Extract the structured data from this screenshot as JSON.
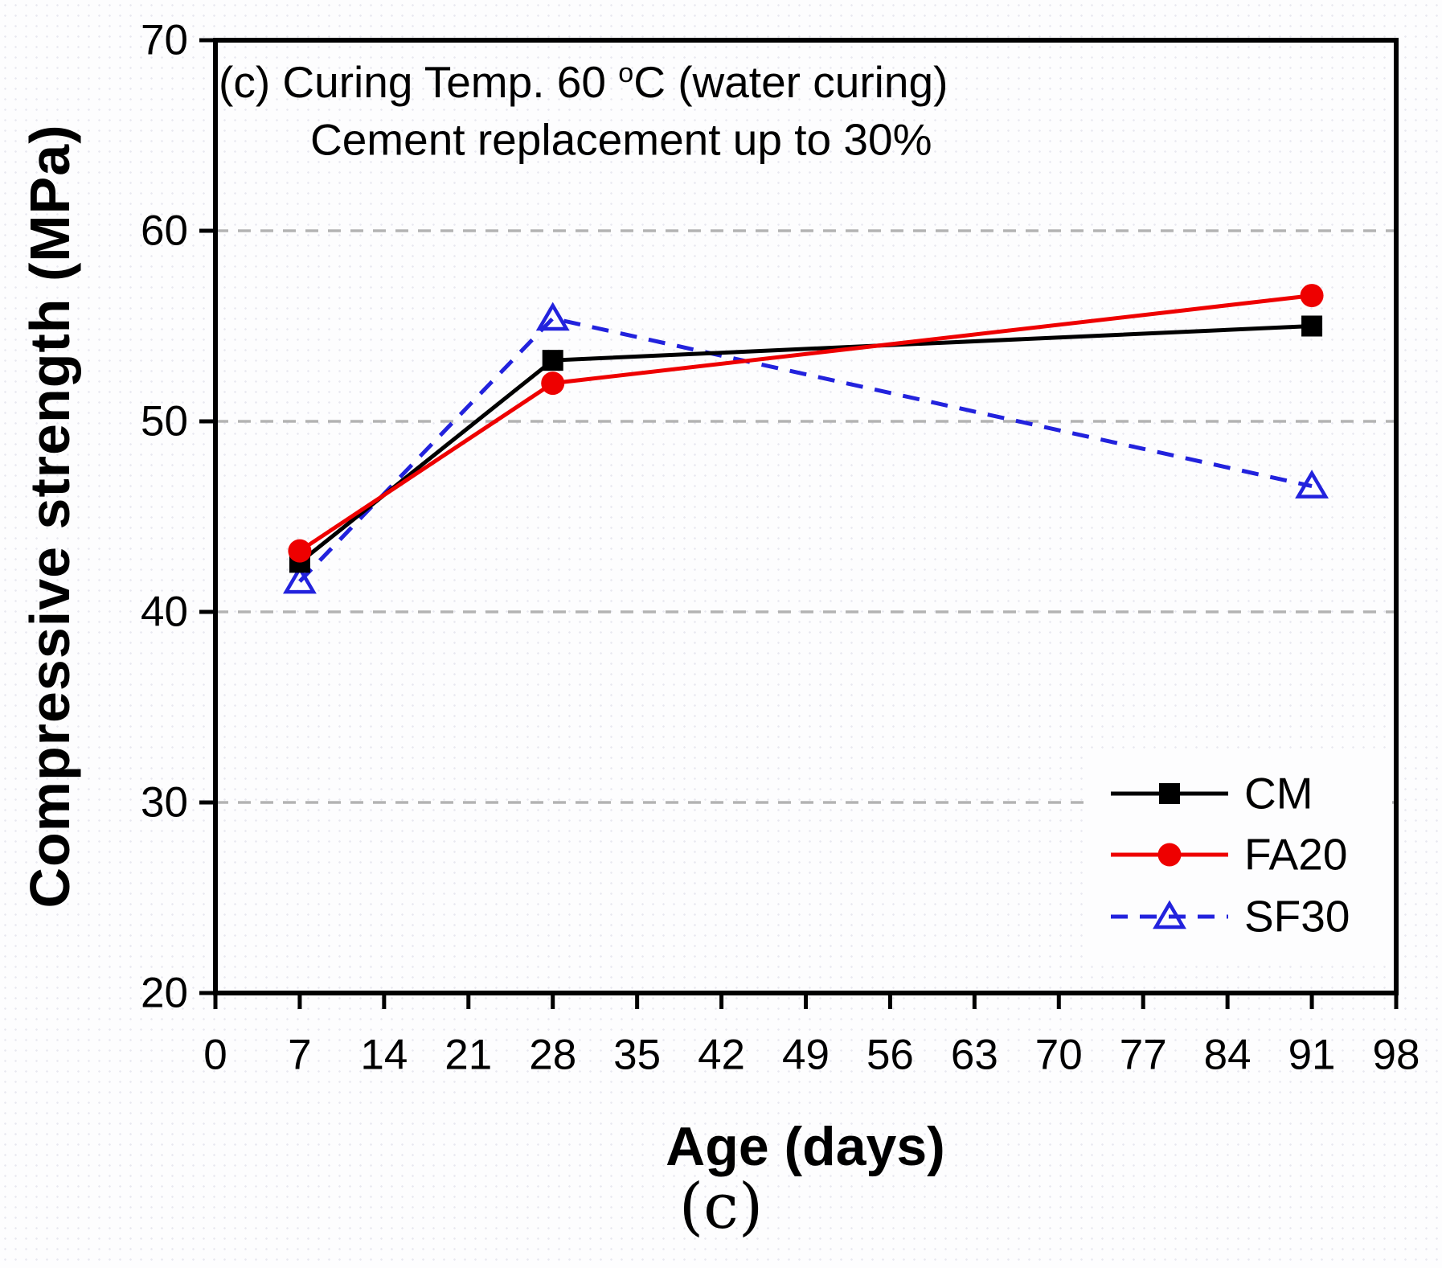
{
  "figure": {
    "caption": "(c)"
  },
  "chart_data": {
    "type": "line",
    "annotation": {
      "line1_pre": "(c) Curing Temp. 60 ",
      "line1_sup": "o",
      "line1_post": "C (water curing)",
      "line2": "Cement replacement up to 30%"
    },
    "xlabel": "Age (days)",
    "ylabel": "Compressive strength (MPa)",
    "xlim": [
      0,
      98
    ],
    "ylim": [
      20,
      70
    ],
    "x_ticks": [
      0,
      7,
      14,
      21,
      28,
      35,
      42,
      49,
      56,
      63,
      70,
      77,
      84,
      91,
      98
    ],
    "y_ticks": [
      20,
      30,
      40,
      50,
      60,
      70
    ],
    "grid": {
      "horizontal_at": [
        30,
        40,
        50,
        60
      ],
      "style": "dashed",
      "color": "#b3b3b3"
    },
    "legend": {
      "position": "lower-right-inside"
    },
    "x": [
      7,
      28,
      91
    ],
    "series": [
      {
        "name": "CM",
        "color": "#000000",
        "line": "solid",
        "marker": "filled-square",
        "values": [
          42.6,
          53.2,
          55.0
        ]
      },
      {
        "name": "FA20",
        "color": "#ee0000",
        "line": "solid",
        "marker": "filled-circle",
        "values": [
          43.2,
          52.0,
          56.6
        ]
      },
      {
        "name": "SF30",
        "color": "#2222dd",
        "line": "dashed",
        "marker": "open-triangle",
        "values": [
          41.6,
          55.4,
          46.6
        ]
      }
    ],
    "draw_order": [
      2,
      0,
      1
    ]
  }
}
